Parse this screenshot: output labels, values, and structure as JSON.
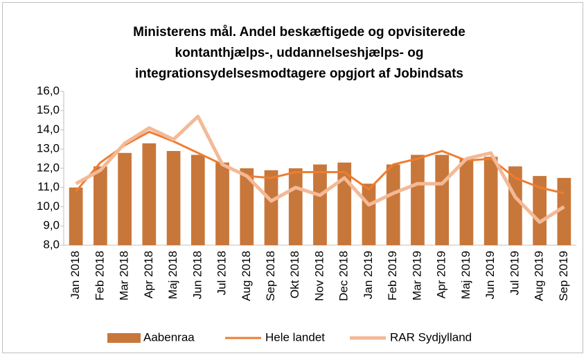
{
  "chart_data": {
    "type": "bar",
    "title": [
      "Ministerens mål. Andel beskæftigede og opvisiterede",
      "kontanthjælps-, uddannelseshjælps- og",
      "integrationsydelsesmodtagere opgjort af Jobindsats"
    ],
    "categories": [
      "Jan 2018",
      "Feb 2018",
      "Mar 2018",
      "Apr 2018",
      "Maj 2018",
      "Jun 2018",
      "Jul 2018",
      "Aug 2018",
      "Sep 2018",
      "Okt 2018",
      "Nov 2018",
      "Dec 2018",
      "Jan 2019",
      "Feb 2019",
      "Mar 2019",
      "Apr 2019",
      "Maj 2019",
      "Jun 2019",
      "Jul 2019",
      "Aug 2019",
      "Sep 2019"
    ],
    "series": [
      {
        "name": "Aabenraa",
        "type": "bar",
        "color": "#c8773a",
        "values": [
          11.0,
          12.1,
          12.8,
          13.3,
          12.9,
          12.7,
          12.3,
          12.0,
          11.9,
          12.0,
          12.2,
          12.3,
          11.2,
          12.2,
          12.7,
          12.7,
          12.5,
          12.6,
          12.1,
          11.6,
          11.5
        ]
      },
      {
        "name": "Hele landet",
        "type": "line",
        "color": "#ed7d31",
        "values": [
          10.8,
          12.3,
          13.2,
          13.9,
          13.4,
          12.8,
          12.2,
          11.6,
          11.5,
          11.8,
          11.8,
          11.8,
          10.9,
          12.2,
          12.5,
          12.9,
          12.4,
          12.5,
          11.5,
          11.0,
          10.7
        ]
      },
      {
        "name": "RAR Sydjylland",
        "type": "line",
        "color": "#f4b996",
        "values": [
          11.2,
          11.9,
          13.3,
          14.1,
          13.5,
          14.7,
          12.2,
          11.6,
          10.3,
          11.0,
          10.6,
          11.5,
          10.1,
          10.7,
          11.2,
          11.2,
          12.5,
          12.8,
          10.5,
          9.2,
          10.0
        ]
      }
    ],
    "ylim": [
      8,
      16
    ],
    "yticks": [
      {
        "value": 8,
        "label": "8,0"
      },
      {
        "value": 9,
        "label": "9,0"
      },
      {
        "value": 10,
        "label": "10,0"
      },
      {
        "value": 11,
        "label": "11,0"
      },
      {
        "value": 12,
        "label": "12,0"
      },
      {
        "value": 13,
        "label": "13,0"
      },
      {
        "value": 14,
        "label": "14,0"
      },
      {
        "value": 15,
        "label": "15,0"
      },
      {
        "value": 16,
        "label": "16,0"
      }
    ],
    "legend": "bottom"
  }
}
